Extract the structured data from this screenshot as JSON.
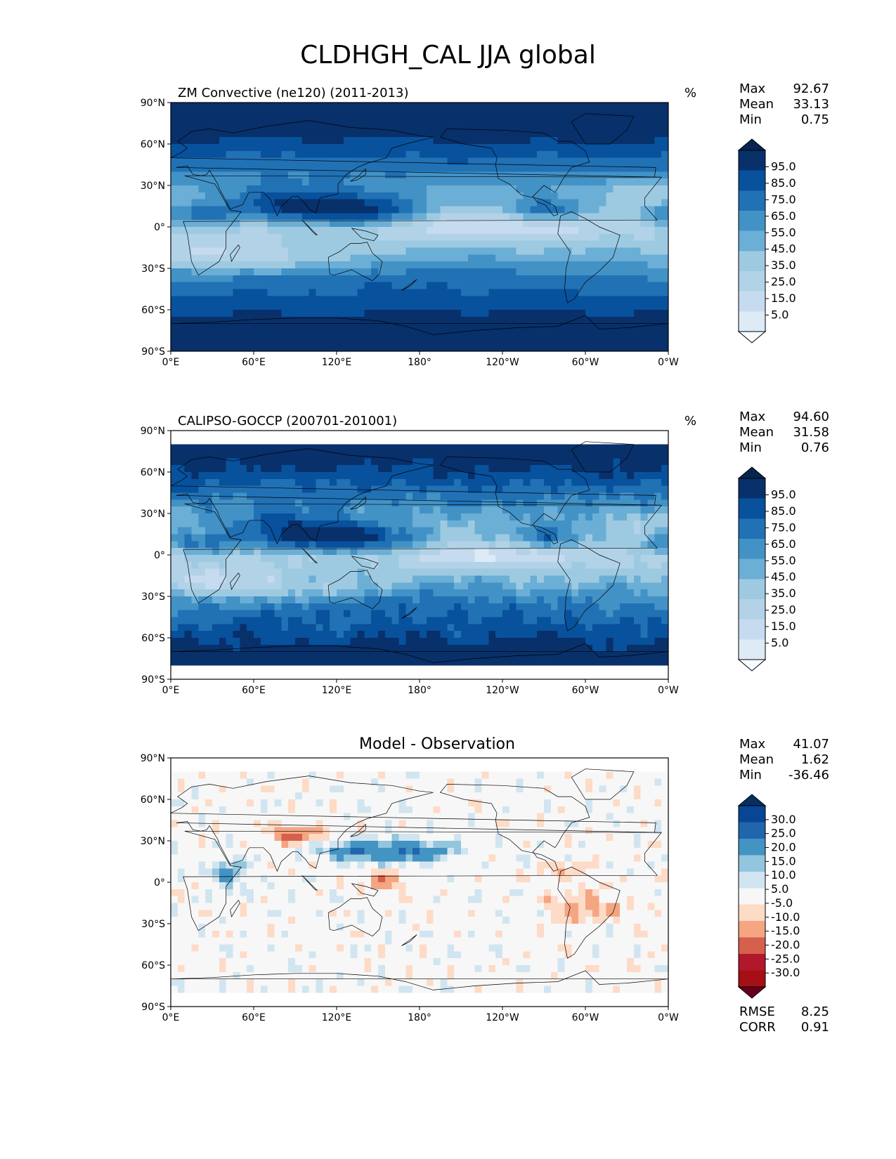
{
  "title": "CLDHGH_CAL JJA global",
  "colors": {
    "blues_low": "#f7fbff",
    "blues_high": "#08306b",
    "rdbu_neg": "#67001f",
    "rdbu_pos": "#053061",
    "neutral": "#f5f5f5"
  },
  "chart_data": [
    {
      "type": "heatmap",
      "title": "ZM Convective (ne120) (2011-2013)",
      "units": "%",
      "stats": {
        "max_label": "Max",
        "max": "92.67",
        "mean_label": "Mean",
        "mean": "33.13",
        "min_label": "Min",
        "min": "0.75"
      },
      "xlim": [
        0,
        360
      ],
      "ylim": [
        -90,
        90
      ],
      "xticklabels": [
        "0°E",
        "60°E",
        "120°E",
        "180°",
        "120°W",
        "60°W",
        "0°W"
      ],
      "yticklabels": [
        "90°N",
        "60°N",
        "30°N",
        "0°",
        "30°S",
        "60°S",
        "90°S"
      ],
      "colorbar": {
        "cmap": "Blues",
        "extend": "both",
        "levels": [
          "5.0",
          "15.0",
          "25.0",
          "35.0",
          "45.0",
          "55.0",
          "65.0",
          "75.0",
          "85.0",
          "95.0"
        ]
      }
    },
    {
      "type": "heatmap",
      "title": "CALIPSO-GOCCP (200701-201001)",
      "units": "%",
      "stats": {
        "max_label": "Max",
        "max": "94.60",
        "mean_label": "Mean",
        "mean": "31.58",
        "min_label": "Min",
        "min": "0.76"
      },
      "xlim": [
        0,
        360
      ],
      "ylim": [
        -90,
        90
      ],
      "xticklabels": [
        "0°E",
        "60°E",
        "120°E",
        "180°",
        "120°W",
        "60°W",
        "0°W"
      ],
      "yticklabels": [
        "90°N",
        "60°N",
        "30°N",
        "0°",
        "30°S",
        "60°S",
        "90°S"
      ],
      "colorbar": {
        "cmap": "Blues",
        "extend": "both",
        "levels": [
          "5.0",
          "15.0",
          "25.0",
          "35.0",
          "45.0",
          "55.0",
          "65.0",
          "75.0",
          "85.0",
          "95.0"
        ]
      }
    },
    {
      "type": "heatmap",
      "title": "Model - Observation",
      "units": "",
      "stats": {
        "max_label": "Max",
        "max": "41.07",
        "mean_label": "Mean",
        "mean": "1.62",
        "min_label": "Min",
        "min": "-36.46",
        "rmse_label": "RMSE",
        "rmse": "8.25",
        "corr_label": "CORR",
        "corr": "0.91"
      },
      "xlim": [
        0,
        360
      ],
      "ylim": [
        -90,
        90
      ],
      "xticklabels": [
        "0°E",
        "60°E",
        "120°E",
        "180°",
        "120°W",
        "60°W",
        "0°W"
      ],
      "yticklabels": [
        "90°N",
        "60°N",
        "30°N",
        "0°",
        "30°S",
        "60°S",
        "90°S"
      ],
      "colorbar": {
        "cmap": "RdBu",
        "extend": "both",
        "levels": [
          "-30.0",
          "-25.0",
          "-20.0",
          "-15.0",
          "-10.0",
          "-5.0",
          "5.0",
          "10.0",
          "15.0",
          "20.0",
          "25.0",
          "30.0"
        ]
      }
    }
  ]
}
